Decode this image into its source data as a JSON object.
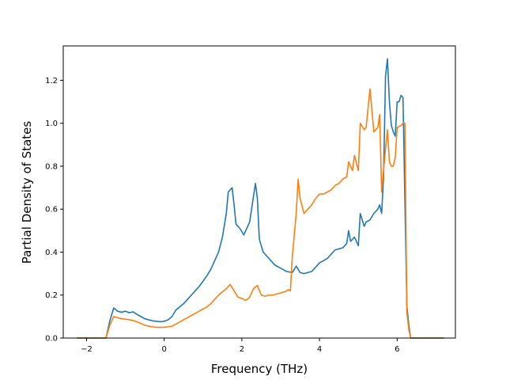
{
  "chart_data": {
    "type": "line",
    "xlabel": "Frequency (THz)",
    "ylabel": "Partial Density of States",
    "xlim": [
      -2.6,
      7.5
    ],
    "ylim": [
      0.0,
      1.36
    ],
    "xticks": [
      -2,
      0,
      2,
      4,
      6
    ],
    "yticks": [
      0.0,
      0.2,
      0.4,
      0.6,
      0.8,
      1.0,
      1.2
    ],
    "xtick_labels": [
      "−2",
      "0",
      "2",
      "4",
      "6"
    ],
    "ytick_labels": [
      "0.0",
      "0.2",
      "0.4",
      "0.6",
      "0.8",
      "1.0",
      "1.2"
    ],
    "grid": false,
    "legend": "none",
    "series": [
      {
        "color": "#1f77b4",
        "points": [
          [
            -2.25,
            0.0
          ],
          [
            -1.5,
            0.0
          ],
          [
            -1.4,
            0.08
          ],
          [
            -1.3,
            0.14
          ],
          [
            -1.2,
            0.125
          ],
          [
            -1.1,
            0.12
          ],
          [
            -1.0,
            0.125
          ],
          [
            -0.9,
            0.118
          ],
          [
            -0.8,
            0.122
          ],
          [
            -0.7,
            0.11
          ],
          [
            -0.6,
            0.1
          ],
          [
            -0.5,
            0.09
          ],
          [
            -0.4,
            0.085
          ],
          [
            -0.3,
            0.08
          ],
          [
            -0.2,
            0.078
          ],
          [
            -0.1,
            0.076
          ],
          [
            0.0,
            0.078
          ],
          [
            0.1,
            0.085
          ],
          [
            0.2,
            0.1
          ],
          [
            0.3,
            0.13
          ],
          [
            0.4,
            0.145
          ],
          [
            0.5,
            0.16
          ],
          [
            0.6,
            0.18
          ],
          [
            0.7,
            0.2
          ],
          [
            0.8,
            0.22
          ],
          [
            0.9,
            0.24
          ],
          [
            1.0,
            0.265
          ],
          [
            1.1,
            0.29
          ],
          [
            1.2,
            0.32
          ],
          [
            1.3,
            0.36
          ],
          [
            1.4,
            0.4
          ],
          [
            1.5,
            0.47
          ],
          [
            1.6,
            0.58
          ],
          [
            1.65,
            0.68
          ],
          [
            1.75,
            0.7
          ],
          [
            1.8,
            0.62
          ],
          [
            1.85,
            0.53
          ],
          [
            1.95,
            0.51
          ],
          [
            2.05,
            0.48
          ],
          [
            2.1,
            0.5
          ],
          [
            2.2,
            0.54
          ],
          [
            2.25,
            0.6
          ],
          [
            2.3,
            0.66
          ],
          [
            2.35,
            0.72
          ],
          [
            2.4,
            0.65
          ],
          [
            2.45,
            0.46
          ],
          [
            2.55,
            0.4
          ],
          [
            2.65,
            0.38
          ],
          [
            2.75,
            0.36
          ],
          [
            2.85,
            0.34
          ],
          [
            2.95,
            0.33
          ],
          [
            3.05,
            0.32
          ],
          [
            3.15,
            0.31
          ],
          [
            3.3,
            0.305
          ],
          [
            3.4,
            0.335
          ],
          [
            3.5,
            0.305
          ],
          [
            3.6,
            0.3
          ],
          [
            3.7,
            0.305
          ],
          [
            3.8,
            0.31
          ],
          [
            3.9,
            0.33
          ],
          [
            4.0,
            0.35
          ],
          [
            4.1,
            0.36
          ],
          [
            4.2,
            0.37
          ],
          [
            4.3,
            0.39
          ],
          [
            4.4,
            0.41
          ],
          [
            4.5,
            0.415
          ],
          [
            4.6,
            0.42
          ],
          [
            4.7,
            0.44
          ],
          [
            4.75,
            0.5
          ],
          [
            4.8,
            0.45
          ],
          [
            4.9,
            0.47
          ],
          [
            5.0,
            0.43
          ],
          [
            5.05,
            0.58
          ],
          [
            5.15,
            0.52
          ],
          [
            5.2,
            0.54
          ],
          [
            5.3,
            0.55
          ],
          [
            5.4,
            0.58
          ],
          [
            5.5,
            0.6
          ],
          [
            5.55,
            0.62
          ],
          [
            5.6,
            0.58
          ],
          [
            5.65,
            0.75
          ],
          [
            5.7,
            1.22
          ],
          [
            5.75,
            1.3
          ],
          [
            5.8,
            1.1
          ],
          [
            5.85,
            0.99
          ],
          [
            5.9,
            0.96
          ],
          [
            5.95,
            0.94
          ],
          [
            6.0,
            1.1
          ],
          [
            6.05,
            1.1
          ],
          [
            6.1,
            1.13
          ],
          [
            6.15,
            1.12
          ],
          [
            6.25,
            0.15
          ],
          [
            6.3,
            0.06
          ],
          [
            6.35,
            0.0
          ],
          [
            7.2,
            0.0
          ]
        ]
      },
      {
        "color": "#ff7f0e",
        "points": [
          [
            -2.25,
            0.0
          ],
          [
            -1.5,
            0.0
          ],
          [
            -1.4,
            0.06
          ],
          [
            -1.3,
            0.1
          ],
          [
            -1.2,
            0.095
          ],
          [
            -1.1,
            0.09
          ],
          [
            -1.0,
            0.088
          ],
          [
            -0.9,
            0.085
          ],
          [
            -0.8,
            0.082
          ],
          [
            -0.7,
            0.075
          ],
          [
            -0.6,
            0.068
          ],
          [
            -0.5,
            0.06
          ],
          [
            -0.4,
            0.055
          ],
          [
            -0.3,
            0.052
          ],
          [
            -0.2,
            0.05
          ],
          [
            0.0,
            0.05
          ],
          [
            0.1,
            0.052
          ],
          [
            0.2,
            0.055
          ],
          [
            0.3,
            0.065
          ],
          [
            0.4,
            0.075
          ],
          [
            0.5,
            0.085
          ],
          [
            0.6,
            0.095
          ],
          [
            0.7,
            0.105
          ],
          [
            0.8,
            0.115
          ],
          [
            0.9,
            0.125
          ],
          [
            1.0,
            0.135
          ],
          [
            1.1,
            0.145
          ],
          [
            1.2,
            0.16
          ],
          [
            1.3,
            0.18
          ],
          [
            1.4,
            0.2
          ],
          [
            1.5,
            0.215
          ],
          [
            1.6,
            0.23
          ],
          [
            1.7,
            0.25
          ],
          [
            1.8,
            0.22
          ],
          [
            1.9,
            0.19
          ],
          [
            2.0,
            0.185
          ],
          [
            2.1,
            0.175
          ],
          [
            2.2,
            0.19
          ],
          [
            2.3,
            0.23
          ],
          [
            2.4,
            0.245
          ],
          [
            2.5,
            0.2
          ],
          [
            2.6,
            0.195
          ],
          [
            2.7,
            0.2
          ],
          [
            2.8,
            0.2
          ],
          [
            2.9,
            0.205
          ],
          [
            3.0,
            0.21
          ],
          [
            3.1,
            0.215
          ],
          [
            3.2,
            0.225
          ],
          [
            3.25,
            0.22
          ],
          [
            3.3,
            0.38
          ],
          [
            3.4,
            0.58
          ],
          [
            3.45,
            0.74
          ],
          [
            3.5,
            0.65
          ],
          [
            3.6,
            0.58
          ],
          [
            3.7,
            0.6
          ],
          [
            3.8,
            0.62
          ],
          [
            3.9,
            0.65
          ],
          [
            4.0,
            0.67
          ],
          [
            4.1,
            0.67
          ],
          [
            4.2,
            0.68
          ],
          [
            4.3,
            0.69
          ],
          [
            4.4,
            0.71
          ],
          [
            4.5,
            0.72
          ],
          [
            4.6,
            0.74
          ],
          [
            4.7,
            0.75
          ],
          [
            4.75,
            0.82
          ],
          [
            4.85,
            0.78
          ],
          [
            4.9,
            0.85
          ],
          [
            5.0,
            0.78
          ],
          [
            5.05,
            1.0
          ],
          [
            5.15,
            0.97
          ],
          [
            5.2,
            0.98
          ],
          [
            5.3,
            1.16
          ],
          [
            5.4,
            0.96
          ],
          [
            5.5,
            0.98
          ],
          [
            5.55,
            1.04
          ],
          [
            5.6,
            0.68
          ],
          [
            5.7,
            0.88
          ],
          [
            5.75,
            0.97
          ],
          [
            5.8,
            0.82
          ],
          [
            5.85,
            0.8
          ],
          [
            5.9,
            0.8
          ],
          [
            5.95,
            0.84
          ],
          [
            6.0,
            0.98
          ],
          [
            6.1,
            0.99
          ],
          [
            6.15,
            1.0
          ],
          [
            6.2,
            1.0
          ],
          [
            6.25,
            0.12
          ],
          [
            6.3,
            0.04
          ],
          [
            6.35,
            0.0
          ],
          [
            7.2,
            0.0
          ]
        ]
      }
    ]
  }
}
